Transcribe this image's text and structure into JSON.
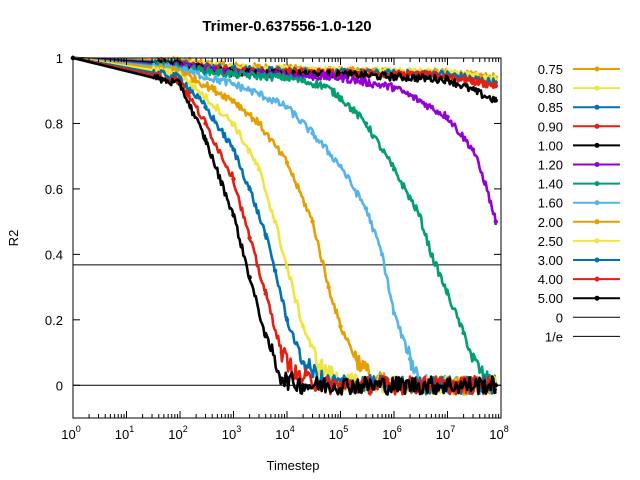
{
  "chart_data": {
    "type": "line",
    "title": "Trimer-0.637556-1.0-120",
    "xlabel": "Timestep",
    "ylabel": "R2",
    "x_scale": "log",
    "xlim": [
      1,
      100000000
    ],
    "ylim": [
      -0.1,
      1.0
    ],
    "x_ticks": [
      {
        "base": "10",
        "exp": "0",
        "value": 1
      },
      {
        "base": "10",
        "exp": "1",
        "value": 10
      },
      {
        "base": "10",
        "exp": "2",
        "value": 100
      },
      {
        "base": "10",
        "exp": "3",
        "value": 1000
      },
      {
        "base": "10",
        "exp": "4",
        "value": 10000
      },
      {
        "base": "10",
        "exp": "5",
        "value": 100000
      },
      {
        "base": "10",
        "exp": "6",
        "value": 1000000
      },
      {
        "base": "10",
        "exp": "7",
        "value": 10000000
      },
      {
        "base": "10",
        "exp": "8",
        "value": 100000000
      }
    ],
    "y_ticks": [
      {
        "label": "1",
        "value": 1.0
      },
      {
        "label": "0.8",
        "value": 0.8
      },
      {
        "label": "0.6",
        "value": 0.6
      },
      {
        "label": "0.4",
        "value": 0.4
      },
      {
        "label": "0.2",
        "value": 0.2
      },
      {
        "label": "0",
        "value": 0.0
      }
    ],
    "grid": false,
    "legend_position": "right",
    "series": [
      {
        "name": "0.75",
        "color": "#e69f00",
        "points": [
          [
            1,
            1.0
          ],
          [
            100,
            0.99
          ],
          [
            1000,
            0.975
          ],
          [
            100000,
            0.96
          ],
          [
            10000000,
            0.955
          ],
          [
            80000000,
            0.94
          ]
        ]
      },
      {
        "name": "0.80",
        "color": "#f0e442",
        "points": [
          [
            1,
            1.0
          ],
          [
            100,
            0.985
          ],
          [
            1000,
            0.97
          ],
          [
            100000,
            0.96
          ],
          [
            10000000,
            0.955
          ],
          [
            80000000,
            0.935
          ]
        ]
      },
      {
        "name": "0.85",
        "color": "#0072b2",
        "points": [
          [
            1,
            1.0
          ],
          [
            100,
            0.985
          ],
          [
            1000,
            0.965
          ],
          [
            100000,
            0.955
          ],
          [
            10000000,
            0.95
          ],
          [
            80000000,
            0.925
          ]
        ]
      },
      {
        "name": "0.90",
        "color": "#e51e10",
        "points": [
          [
            1,
            1.0
          ],
          [
            100,
            0.98
          ],
          [
            1000,
            0.96
          ],
          [
            100000,
            0.955
          ],
          [
            10000000,
            0.945
          ],
          [
            80000000,
            0.915
          ]
        ]
      },
      {
        "name": "1.00",
        "color": "#000000",
        "points": [
          [
            1,
            1.0
          ],
          [
            100,
            0.98
          ],
          [
            1000,
            0.955
          ],
          [
            100000,
            0.95
          ],
          [
            10000000,
            0.935
          ],
          [
            80000000,
            0.87
          ]
        ]
      },
      {
        "name": "1.20",
        "color": "#9400d3",
        "points": [
          [
            1,
            1.0
          ],
          [
            100,
            0.975
          ],
          [
            1000,
            0.955
          ],
          [
            100000,
            0.94
          ],
          [
            1000000,
            0.91
          ],
          [
            3000000,
            0.87
          ],
          [
            10000000,
            0.82
          ],
          [
            30000000,
            0.72
          ],
          [
            50000000,
            0.62
          ],
          [
            80000000,
            0.5
          ]
        ]
      },
      {
        "name": "1.40",
        "color": "#009e73",
        "points": [
          [
            1,
            1.0
          ],
          [
            100,
            0.97
          ],
          [
            1000,
            0.95
          ],
          [
            10000,
            0.94
          ],
          [
            50000,
            0.915
          ],
          [
            100000,
            0.88
          ],
          [
            300000,
            0.8
          ],
          [
            1000000,
            0.66
          ],
          [
            3000000,
            0.52
          ],
          [
            5000000,
            0.4
          ],
          [
            10000000,
            0.28
          ],
          [
            20000000,
            0.16
          ],
          [
            30000000,
            0.08
          ],
          [
            50000000,
            0.02
          ],
          [
            80000000,
            0.0
          ]
        ]
      },
      {
        "name": "1.60",
        "color": "#56b4e9",
        "points": [
          [
            1,
            1.0
          ],
          [
            100,
            0.965
          ],
          [
            1000,
            0.92
          ],
          [
            3000,
            0.89
          ],
          [
            10000,
            0.85
          ],
          [
            30000,
            0.77
          ],
          [
            100000,
            0.67
          ],
          [
            300000,
            0.54
          ],
          [
            600000,
            0.4
          ],
          [
            1000000,
            0.22
          ],
          [
            2000000,
            0.08
          ],
          [
            3000000,
            0.02
          ],
          [
            10000000,
            0.0
          ],
          [
            80000000,
            0.0
          ]
        ]
      },
      {
        "name": "2.00",
        "color": "#e69f00",
        "points": [
          [
            1,
            1.0
          ],
          [
            100,
            0.96
          ],
          [
            1000,
            0.87
          ],
          [
            3000,
            0.8
          ],
          [
            10000,
            0.68
          ],
          [
            30000,
            0.5
          ],
          [
            60000,
            0.3
          ],
          [
            100000,
            0.18
          ],
          [
            200000,
            0.08
          ],
          [
            400000,
            0.02
          ],
          [
            1000000,
            0.0
          ],
          [
            80000000,
            0.0
          ]
        ]
      },
      {
        "name": "2.50",
        "color": "#f0e442",
        "points": [
          [
            1,
            1.0
          ],
          [
            100,
            0.95
          ],
          [
            300,
            0.88
          ],
          [
            1000,
            0.8
          ],
          [
            3000,
            0.66
          ],
          [
            6000,
            0.5
          ],
          [
            10000,
            0.36
          ],
          [
            20000,
            0.18
          ],
          [
            40000,
            0.06
          ],
          [
            100000,
            0.01
          ],
          [
            1000000,
            0.0
          ],
          [
            80000000,
            0.0
          ]
        ]
      },
      {
        "name": "3.00",
        "color": "#0072b2",
        "points": [
          [
            1,
            1.0
          ],
          [
            100,
            0.94
          ],
          [
            300,
            0.85
          ],
          [
            1000,
            0.72
          ],
          [
            2000,
            0.6
          ],
          [
            4000,
            0.46
          ],
          [
            6000,
            0.35
          ],
          [
            10000,
            0.2
          ],
          [
            20000,
            0.07
          ],
          [
            50000,
            0.01
          ],
          [
            1000000,
            0.0
          ],
          [
            80000000,
            0.0
          ]
        ]
      },
      {
        "name": "4.00",
        "color": "#e51e10",
        "points": [
          [
            1,
            1.0
          ],
          [
            100,
            0.93
          ],
          [
            300,
            0.8
          ],
          [
            1000,
            0.63
          ],
          [
            2000,
            0.45
          ],
          [
            4000,
            0.28
          ],
          [
            8000,
            0.1
          ],
          [
            15000,
            0.03
          ],
          [
            50000,
            0.0
          ],
          [
            80000000,
            0.0
          ]
        ]
      },
      {
        "name": "5.00",
        "color": "#000000",
        "points": [
          [
            1,
            1.0
          ],
          [
            100,
            0.92
          ],
          [
            300,
            0.75
          ],
          [
            1000,
            0.52
          ],
          [
            2000,
            0.33
          ],
          [
            4000,
            0.15
          ],
          [
            8000,
            0.02
          ],
          [
            20000,
            0.0
          ],
          [
            80000000,
            0.0
          ]
        ]
      }
    ],
    "reference_lines": [
      {
        "name": "0",
        "y": 0.0,
        "color": "#000000"
      },
      {
        "name": "1/e",
        "y": 0.3679,
        "color": "#000000"
      }
    ]
  }
}
